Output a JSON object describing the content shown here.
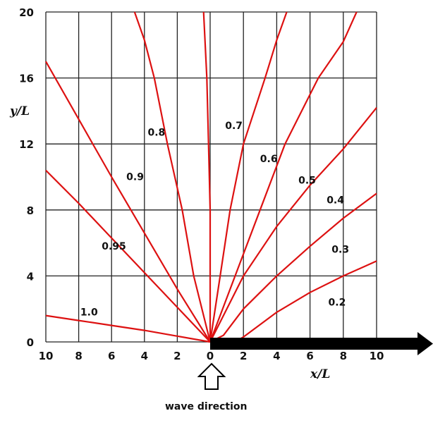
{
  "chart_data": {
    "type": "line",
    "title": "",
    "xlabel": "x/L",
    "ylabel": "y/L",
    "xlim": [
      -10,
      10
    ],
    "ylim": [
      0,
      20
    ],
    "x_tick_labels": [
      "10",
      "8",
      "6",
      "4",
      "2",
      "0",
      "2",
      "4",
      "6",
      "8",
      "10"
    ],
    "y_tick_labels": [
      "0",
      "4",
      "8",
      "12",
      "16",
      "20"
    ],
    "grid": true,
    "annotation": "wave direction",
    "series": [
      {
        "name": "1.0",
        "points": [
          [
            -10,
            1.6
          ],
          [
            -8,
            1.3
          ],
          [
            -6,
            1.0
          ],
          [
            -4,
            0.7
          ],
          [
            -2,
            0.35
          ],
          [
            0,
            0
          ]
        ]
      },
      {
        "name": "0.95",
        "points": [
          [
            -10,
            10.4
          ],
          [
            -8,
            8.4
          ],
          [
            -6,
            6.3
          ],
          [
            -4,
            4.2
          ],
          [
            -2,
            2.1
          ],
          [
            0,
            0
          ]
        ]
      },
      {
        "name": "0.9",
        "points": [
          [
            -10,
            17.0
          ],
          [
            -8,
            13.5
          ],
          [
            -6,
            10.0
          ],
          [
            -4,
            6.6
          ],
          [
            -2,
            3.2
          ],
          [
            0,
            0
          ]
        ]
      },
      {
        "name": "0.8",
        "points": [
          [
            -4.6,
            20
          ],
          [
            -4,
            18.3
          ],
          [
            -3.4,
            16
          ],
          [
            -2.6,
            12
          ],
          [
            -1.7,
            8
          ],
          [
            -1,
            4
          ],
          [
            0,
            0
          ]
        ]
      },
      {
        "name": "0.7",
        "points": [
          [
            -0.4,
            20
          ],
          [
            -0.2,
            16
          ],
          [
            -0.1,
            12
          ],
          [
            0,
            8
          ],
          [
            0,
            4
          ],
          [
            0,
            0
          ]
        ]
      },
      {
        "name": "0.6",
        "points": [
          [
            4.6,
            20
          ],
          [
            4,
            18.3
          ],
          [
            3.3,
            16
          ],
          [
            2,
            12
          ],
          [
            1.2,
            8
          ],
          [
            0.6,
            4
          ],
          [
            0,
            0
          ]
        ]
      },
      {
        "name": "0.5",
        "points": [
          [
            8.8,
            20
          ],
          [
            8,
            18.2
          ],
          [
            6.5,
            16
          ],
          [
            4.5,
            12
          ],
          [
            3,
            8
          ],
          [
            1.5,
            4
          ],
          [
            0,
            0
          ]
        ]
      },
      {
        "name": "0.4",
        "points": [
          [
            10,
            14.2
          ],
          [
            8,
            11.7
          ],
          [
            6,
            9.5
          ],
          [
            4,
            7.0
          ],
          [
            2,
            4.0
          ],
          [
            0.5,
            1.0
          ],
          [
            0,
            0
          ]
        ]
      },
      {
        "name": "0.3",
        "points": [
          [
            10,
            9.0
          ],
          [
            8,
            7.5
          ],
          [
            6,
            5.8
          ],
          [
            4,
            4.0
          ],
          [
            2,
            2.0
          ],
          [
            0.8,
            0.4
          ],
          [
            0,
            0
          ]
        ]
      },
      {
        "name": "0.2",
        "points": [
          [
            10,
            4.9
          ],
          [
            8,
            4.0
          ],
          [
            6,
            3.0
          ],
          [
            4,
            1.8
          ],
          [
            2,
            0.3
          ],
          [
            1.5,
            0
          ]
        ]
      }
    ],
    "curve_labels": [
      {
        "text": "1.0",
        "x": -7.9,
        "y": 1.6
      },
      {
        "text": "0.95",
        "x": -6.6,
        "y": 5.6
      },
      {
        "text": "0.9",
        "x": -5.1,
        "y": 9.8
      },
      {
        "text": "0.8",
        "x": -3.8,
        "y": 12.5
      },
      {
        "text": "0.7",
        "x": 0.9,
        "y": 12.9
      },
      {
        "text": "0.6",
        "x": 3.0,
        "y": 10.9
      },
      {
        "text": "0.5",
        "x": 5.3,
        "y": 9.6
      },
      {
        "text": "0.4",
        "x": 7.0,
        "y": 8.4
      },
      {
        "text": "0.3",
        "x": 7.3,
        "y": 5.4
      },
      {
        "text": "0.2",
        "x": 7.1,
        "y": 2.2
      }
    ],
    "colors": {
      "curves": "#dd1111",
      "grid": "#222222",
      "axis_arrow": "#000000"
    }
  },
  "labels": {
    "xlabel": "x/L",
    "ylabel": "y/L",
    "caption": "wave direction"
  }
}
